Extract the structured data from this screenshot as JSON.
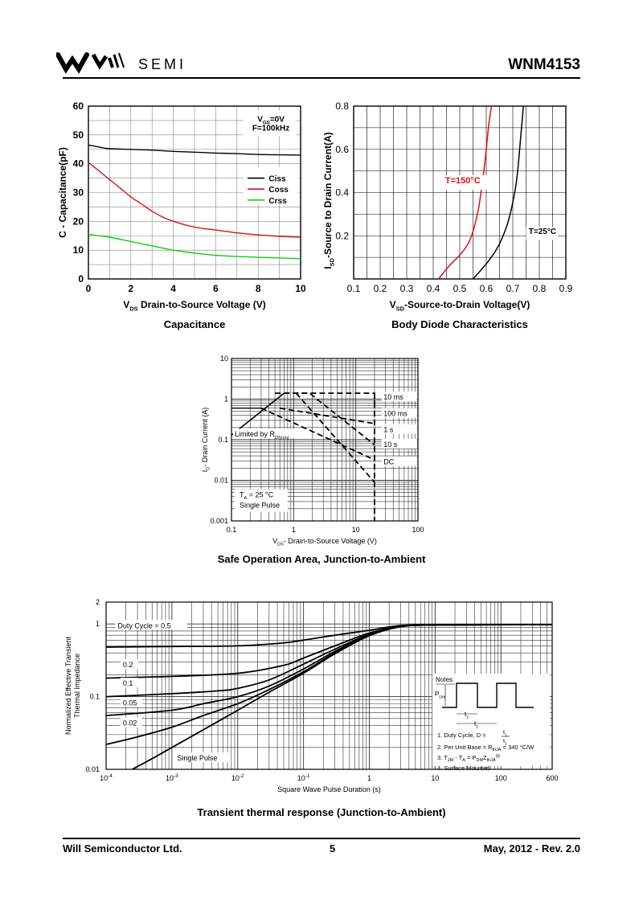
{
  "header": {
    "brand_word": "SEMI",
    "part_number": "WNM4153"
  },
  "footer": {
    "company": "Will Semiconductor Ltd.",
    "page": "5",
    "date_rev": "May, 2012 - Rev. 2.0"
  },
  "captions": {
    "capacitance": "Capacitance",
    "body_diode": "Body Diode Characteristics",
    "soa": "Safe Operation Area, Junction-to-Ambient",
    "transient": "Transient thermal response (Junction-to-Ambient)"
  },
  "chart_data": [
    {
      "id": "capacitance",
      "type": "line",
      "xlabel_main": "Drain-to-Source Voltage (V)",
      "xlabel_prefix": "V",
      "xlabel_sub": "DS",
      "ylabel": "C - Capacitance(pF)",
      "xlim": [
        0,
        10
      ],
      "ylim": [
        0,
        60
      ],
      "xticks": [
        0,
        2,
        4,
        6,
        8,
        10
      ],
      "yticks": [
        0,
        10,
        20,
        30,
        40,
        50,
        60
      ],
      "conditions": [
        "V_GS=0V",
        "F=100kHz"
      ],
      "legend_position": "right",
      "series": [
        {
          "name": "Ciss",
          "color": "#000000",
          "x": [
            0,
            0.5,
            1,
            2,
            3,
            4,
            5,
            6,
            7,
            8,
            9,
            10
          ],
          "y": [
            46.5,
            45.8,
            45.2,
            45.0,
            44.7,
            44.3,
            44.0,
            43.7,
            43.5,
            43.2,
            43.1,
            43.0
          ]
        },
        {
          "name": "Coss",
          "color": "#e01010",
          "x": [
            0,
            0.5,
            1,
            1.5,
            2,
            2.5,
            3,
            3.5,
            4,
            5,
            6,
            7,
            8,
            9,
            10
          ],
          "y": [
            40.5,
            37.5,
            34.5,
            31.5,
            28.5,
            26.0,
            23.5,
            21.5,
            20.0,
            18.0,
            17.0,
            16.0,
            15.3,
            14.8,
            14.5
          ]
        },
        {
          "name": "Crss",
          "color": "#10d010",
          "x": [
            0,
            0.5,
            1,
            2,
            3,
            4,
            5,
            6,
            7,
            8,
            9,
            10
          ],
          "y": [
            15.5,
            15.0,
            14.5,
            13.0,
            11.5,
            10.0,
            9.0,
            8.2,
            7.8,
            7.5,
            7.3,
            7.0
          ]
        }
      ]
    },
    {
      "id": "body_diode",
      "type": "line",
      "xlabel_main": "-Source-to-Drain Voltage(V)",
      "xlabel_prefix": "V",
      "xlabel_sub": "SD",
      "ylabel_main": "-Source to Drain Current(A)",
      "ylabel_prefix": "I",
      "ylabel_sub": "SD",
      "xlim": [
        0.1,
        0.9
      ],
      "ylim": [
        0,
        0.8
      ],
      "xticks": [
        0.1,
        0.2,
        0.3,
        0.4,
        0.5,
        0.6,
        0.7,
        0.8,
        0.9
      ],
      "yticks": [
        0.2,
        0.4,
        0.6,
        0.8
      ],
      "series": [
        {
          "name": "T=150°C",
          "color": "#e01010",
          "x": [
            0.42,
            0.46,
            0.5,
            0.53,
            0.55,
            0.57,
            0.58,
            0.59,
            0.6,
            0.61,
            0.62
          ],
          "y": [
            0.0,
            0.06,
            0.11,
            0.16,
            0.22,
            0.32,
            0.4,
            0.49,
            0.6,
            0.72,
            0.8
          ]
        },
        {
          "name": "T=25°C",
          "color": "#000000",
          "x": [
            0.55,
            0.6,
            0.64,
            0.67,
            0.69,
            0.71,
            0.72,
            0.73,
            0.74
          ],
          "y": [
            0.0,
            0.07,
            0.14,
            0.22,
            0.3,
            0.42,
            0.52,
            0.66,
            0.8
          ]
        }
      ]
    },
    {
      "id": "soa",
      "type": "line",
      "scale": "log-log",
      "xlabel_main": "- Drain-to-Source Voltage (V)",
      "xlabel_prefix": "V",
      "xlabel_sub": "DS",
      "ylabel_main": "- Drain Current (A)",
      "ylabel_prefix": "I",
      "ylabel_sub": "D",
      "xlim": [
        0.1,
        100
      ],
      "ylim": [
        0.001,
        10
      ],
      "xticks": [
        0.1,
        1,
        10,
        100
      ],
      "xtick_labels": [
        "0.1",
        "1",
        "10",
        "100"
      ],
      "yticks": [
        0.001,
        0.01,
        0.1,
        1,
        10
      ],
      "ytick_labels": [
        "0.001",
        "0.01",
        "0.1",
        "1",
        "10"
      ],
      "limit_label_prefix": "Limited by R",
      "limit_label_sub": "DS(on)",
      "conditions": [
        "T_A = 25 °C",
        "Single Pulse"
      ],
      "limit_line": {
        "x": [
          0.1,
          0.7
        ],
        "y": [
          0.13,
          1.4
        ]
      },
      "series": [
        {
          "name": "10 ms",
          "x": [
            0.7,
            20,
            20
          ],
          "y": [
            1.4,
            1.4,
            0.6
          ]
        },
        {
          "name": "100 ms",
          "x": [
            0.6,
            20
          ],
          "y": [
            0.6,
            0.25
          ]
        },
        {
          "name": "1 s",
          "x": [
            0.5,
            1.8,
            20
          ],
          "y": [
            1.4,
            1.4,
            0.075
          ]
        },
        {
          "name": "10 s",
          "x": [
            0.3,
            20
          ],
          "y": [
            0.6,
            0.032
          ]
        },
        {
          "name": "DC",
          "x": [
            1.1,
            20
          ],
          "y": [
            1.4,
            0.009
          ]
        }
      ]
    },
    {
      "id": "transient",
      "type": "line",
      "scale": "log-log",
      "xlabel": "Square Wave Pulse Duration (s)",
      "ylabel_lines": [
        "Normalized Effective Transient",
        "Thermal Impedance"
      ],
      "xlim": [
        0.0001,
        600
      ],
      "ylim": [
        0.01,
        2
      ],
      "xticks": [
        0.0001,
        0.001,
        0.01,
        0.1,
        1,
        10,
        100,
        600
      ],
      "yticks": [
        0.01,
        0.1,
        1,
        2
      ],
      "ytick_labels": [
        "0.01",
        "0.1",
        "1",
        "2"
      ],
      "notes_title": "Notes:",
      "notes": [
        "1. Duty Cycle, D = t1 / t2",
        "2. Per Unit Base = R_thJA = 340 °C/W",
        "3. T_JM - T_A = P_DM Z_thJA(t)",
        "4. Surface Mounted"
      ],
      "notes_labels": {
        "pdm": "P_DM",
        "t1": "t1",
        "t2": "t2"
      },
      "series": [
        {
          "name": "Duty Cycle = 0.5",
          "x": [
            0.0001,
            0.001,
            0.01,
            0.05,
            0.1,
            0.3,
            1,
            3,
            10,
            600
          ],
          "y": [
            0.48,
            0.49,
            0.5,
            0.55,
            0.6,
            0.7,
            0.82,
            0.95,
            0.97,
            0.98
          ]
        },
        {
          "name": "0.2",
          "x": [
            0.0001,
            0.001,
            0.01,
            0.05,
            0.1,
            0.3,
            1,
            3,
            10,
            600
          ],
          "y": [
            0.18,
            0.19,
            0.21,
            0.27,
            0.34,
            0.5,
            0.75,
            0.93,
            0.97,
            0.98
          ]
        },
        {
          "name": "0.1",
          "x": [
            0.0001,
            0.001,
            0.005,
            0.01,
            0.03,
            0.1,
            0.3,
            1,
            3,
            10,
            600
          ],
          "y": [
            0.1,
            0.11,
            0.12,
            0.13,
            0.17,
            0.28,
            0.45,
            0.72,
            0.92,
            0.97,
            0.98
          ]
        },
        {
          "name": "0.05",
          "x": [
            0.0001,
            0.001,
            0.003,
            0.01,
            0.03,
            0.1,
            0.3,
            1,
            3,
            10,
            600
          ],
          "y": [
            0.055,
            0.065,
            0.08,
            0.1,
            0.14,
            0.24,
            0.42,
            0.7,
            0.92,
            0.97,
            0.98
          ]
        },
        {
          "name": "0.02",
          "x": [
            0.0001,
            0.0003,
            0.001,
            0.003,
            0.01,
            0.03,
            0.1,
            0.3,
            1,
            3,
            10,
            600
          ],
          "y": [
            0.022,
            0.028,
            0.038,
            0.055,
            0.08,
            0.125,
            0.22,
            0.4,
            0.7,
            0.92,
            0.97,
            0.98
          ]
        },
        {
          "name": "Single Pulse",
          "x": [
            0.00025,
            0.0005,
            0.001,
            0.003,
            0.01,
            0.03,
            0.1,
            0.3,
            1,
            3,
            10,
            600
          ],
          "y": [
            0.01,
            0.014,
            0.02,
            0.035,
            0.065,
            0.115,
            0.21,
            0.39,
            0.69,
            0.92,
            0.97,
            0.98
          ]
        }
      ]
    }
  ]
}
